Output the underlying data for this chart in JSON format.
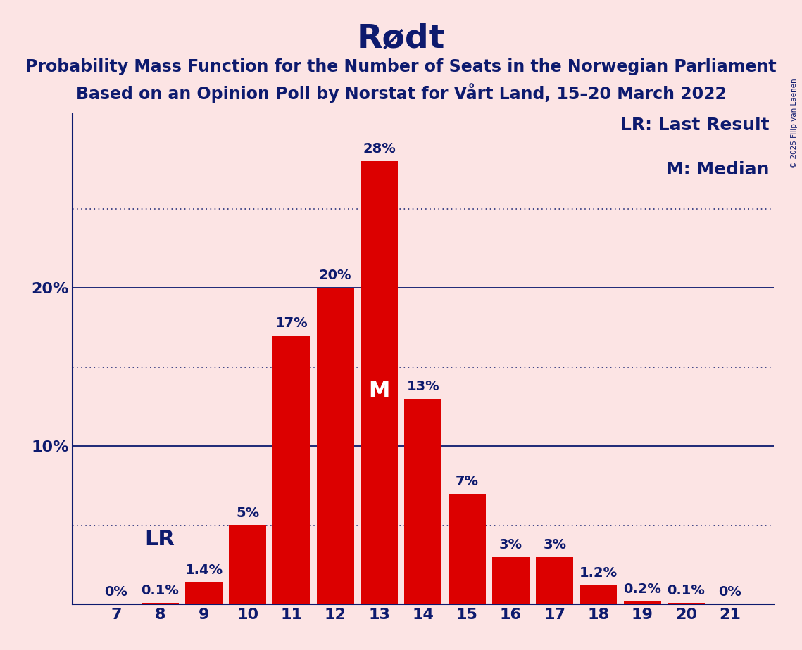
{
  "title": "Rødt",
  "subtitle1": "Probability Mass Function for the Number of Seats in the Norwegian Parliament",
  "subtitle2": "Based on an Opinion Poll by Norstat for Vårt Land, 15–20 March 2022",
  "watermark": "© 2025 Filip van Laenen",
  "seats": [
    7,
    8,
    9,
    10,
    11,
    12,
    13,
    14,
    15,
    16,
    17,
    18,
    19,
    20,
    21
  ],
  "probabilities": [
    0.0,
    0.1,
    1.4,
    5.0,
    17.0,
    20.0,
    28.0,
    13.0,
    7.0,
    3.0,
    3.0,
    1.2,
    0.2,
    0.1,
    0.0
  ],
  "labels": [
    "0%",
    "0.1%",
    "1.4%",
    "5%",
    "17%",
    "20%",
    "28%",
    "13%",
    "7%",
    "3%",
    "3%",
    "1.2%",
    "0.2%",
    "0.1%",
    "0%"
  ],
  "bar_color": "#dc0000",
  "background_color": "#fce4e4",
  "text_color": "#0d1a6e",
  "median_seat": 13,
  "last_result_seat": 8,
  "dotted_lines": [
    5.0,
    15.0,
    25.0
  ],
  "solid_lines": [
    10.0,
    20.0
  ],
  "legend_lr": "LR: Last Result",
  "legend_m": "M: Median",
  "title_fontsize": 34,
  "subtitle_fontsize": 17,
  "bar_label_fontsize": 14,
  "axis_fontsize": 16,
  "legend_fontsize": 18,
  "lr_label_fontsize": 22,
  "m_label_fontsize": 22
}
